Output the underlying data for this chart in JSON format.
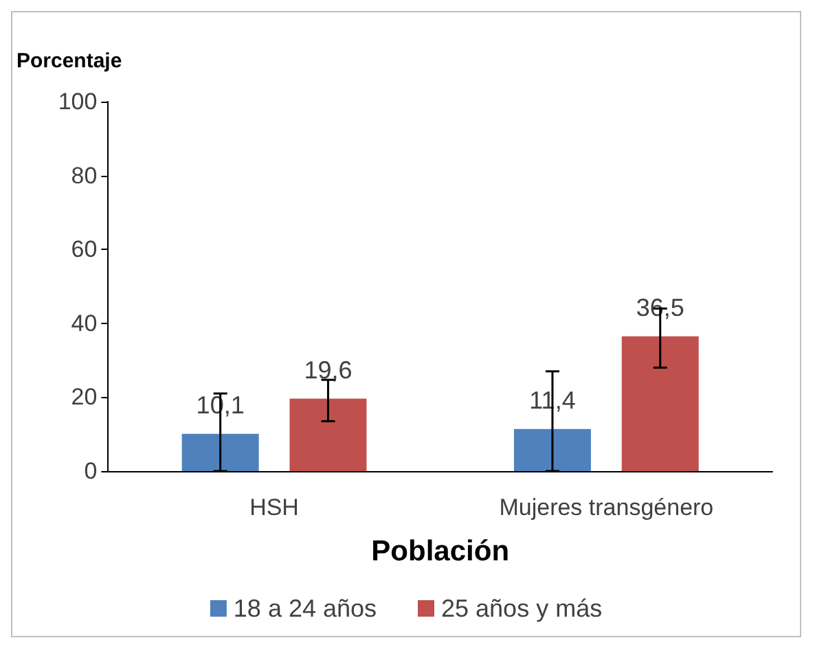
{
  "chart_data": {
    "type": "bar",
    "ylabel": "Porcentaje",
    "xlabel": "Población",
    "categories": [
      "HSH",
      "Mujeres transgénero"
    ],
    "series": [
      {
        "name": "18 a 24 años",
        "color": "#4f81bd",
        "values": [
          10.1,
          11.4
        ],
        "value_labels": [
          "10,1",
          "11,4"
        ],
        "errors": [
          [
            0,
            21
          ],
          [
            0,
            27
          ]
        ]
      },
      {
        "name": "25 años y más",
        "color": "#c0504d",
        "values": [
          19.6,
          36.5
        ],
        "value_labels": [
          "19,6",
          "36,5"
        ],
        "errors": [
          [
            13.5,
            24.7
          ],
          [
            28,
            44
          ]
        ]
      }
    ],
    "ylim": [
      0,
      100
    ],
    "yticks": [
      0,
      20,
      40,
      60,
      80,
      100
    ],
    "grid": false,
    "legend": "bottom"
  }
}
